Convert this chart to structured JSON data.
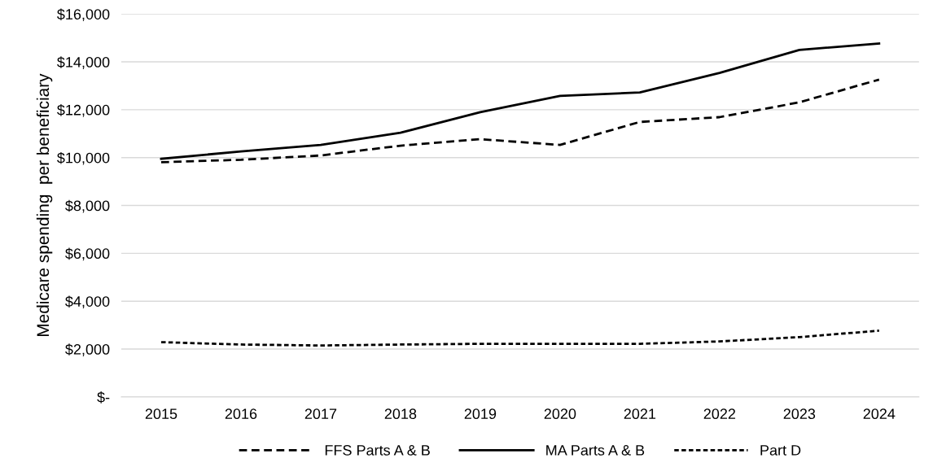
{
  "chart_data": {
    "type": "line",
    "ylabel": "Medicare spending  per beneficiary",
    "categories": [
      "2015",
      "2016",
      "2017",
      "2018",
      "2019",
      "2020",
      "2021",
      "2022",
      "2023",
      "2024"
    ],
    "series": [
      {
        "name": "FFS Parts A & B",
        "color": "#000000",
        "line_style": "dashed",
        "values": [
          9810,
          9910,
          10090,
          10500,
          10770,
          10530,
          11490,
          11690,
          12310,
          13260
        ]
      },
      {
        "name": "MA Parts A & B",
        "color": "#000000",
        "line_style": "solid",
        "values": [
          9950,
          10260,
          10530,
          11040,
          11900,
          12580,
          12720,
          13540,
          14500,
          14770
        ]
      },
      {
        "name": "Part D",
        "color": "#000000",
        "line_style": "dotted",
        "values": [
          2290,
          2190,
          2150,
          2190,
          2220,
          2220,
          2220,
          2320,
          2500,
          2770
        ]
      }
    ],
    "ylim": [
      0,
      16000
    ],
    "yticks": [
      {
        "value": 0,
        "label": "$-"
      },
      {
        "value": 2000,
        "label": "$2,000"
      },
      {
        "value": 4000,
        "label": "$4,000"
      },
      {
        "value": 6000,
        "label": "$6,000"
      },
      {
        "value": 8000,
        "label": "$8,000"
      },
      {
        "value": 10000,
        "label": "$10,000"
      },
      {
        "value": 12000,
        "label": "$12,000"
      },
      {
        "value": 14000,
        "label": "$14,000"
      },
      {
        "value": 16000,
        "label": "$16,000"
      }
    ],
    "grid": "y",
    "legend": "bottom",
    "marker": "none"
  }
}
